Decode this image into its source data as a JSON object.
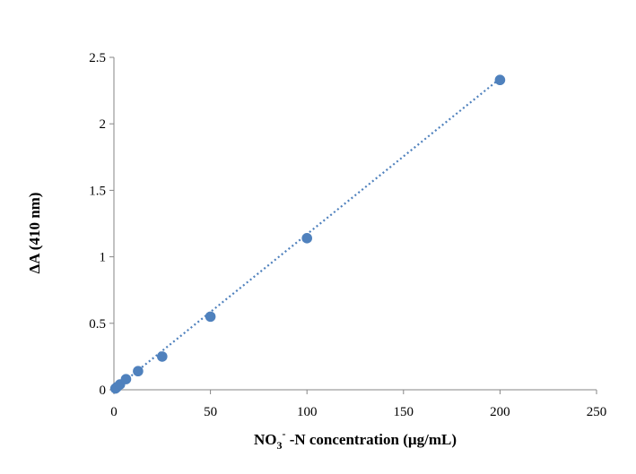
{
  "chart_data": {
    "type": "scatter",
    "title": "",
    "xlabel": {
      "prefix": "NO",
      "sub": "3",
      "sup": "-",
      "suffix": " -N concentration (µg/mL)"
    },
    "ylabel": "ΔA (410 nm)",
    "xlim": [
      0,
      250
    ],
    "ylim": [
      0,
      2.5
    ],
    "x_ticks": [
      0,
      50,
      100,
      150,
      200,
      250
    ],
    "x_tick_labels": [
      "0",
      "50",
      "100",
      "150",
      "200",
      "250"
    ],
    "y_ticks": [
      0,
      0.5,
      1,
      1.5,
      2,
      2.5
    ],
    "y_tick_labels": [
      "0",
      "0.5",
      "1",
      "1.5",
      "2",
      "2.5"
    ],
    "grid": false,
    "legend": "none",
    "series": [
      {
        "name": "ΔA",
        "color": "#4f81bd",
        "x": [
          0.78,
          1.56,
          3.13,
          6.25,
          12.5,
          25,
          50,
          100,
          200
        ],
        "y": [
          0.01,
          0.02,
          0.04,
          0.08,
          0.14,
          0.25,
          0.55,
          1.14,
          2.33
        ]
      }
    ],
    "trendline": {
      "type": "linear",
      "style": "dotted",
      "color": "#4f81bd",
      "x_range": [
        0,
        200
      ],
      "slope": 0.0117,
      "intercept": 0.0
    }
  }
}
